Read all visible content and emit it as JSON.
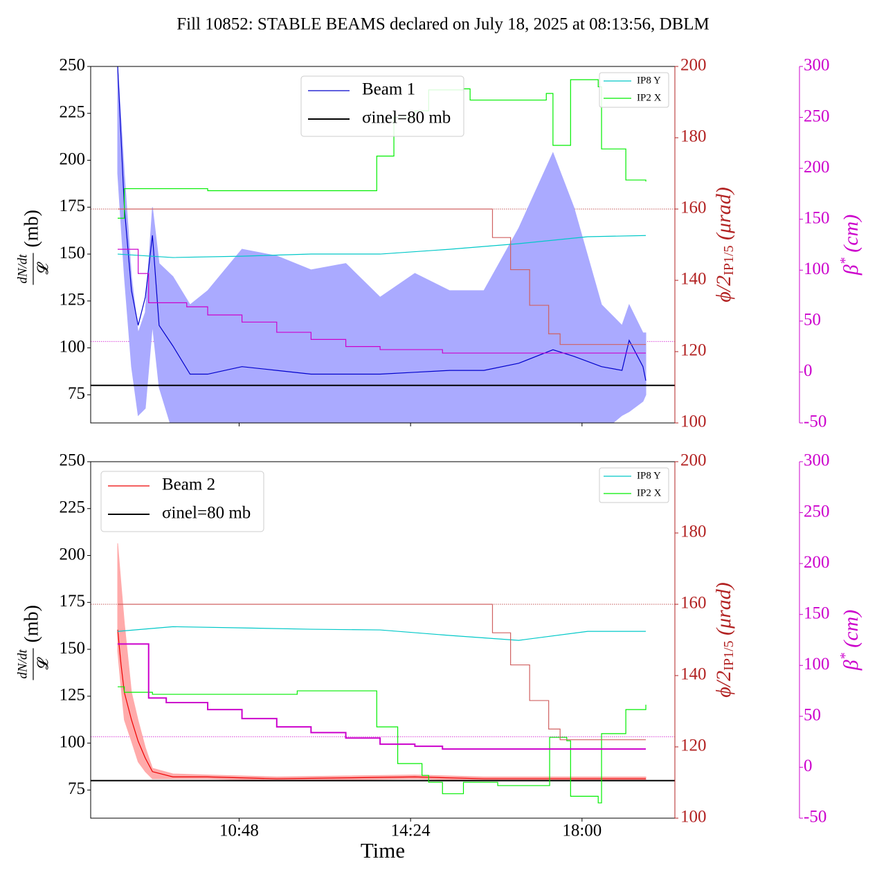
{
  "title": "Fill 10852: STABLE BEAMS declared on July 18, 2025 at 08:13:56, DBLM",
  "chart_data": [
    {
      "type": "line",
      "xlim": [
        7.683,
        19.95
      ],
      "xticks": [
        10.8,
        14.4,
        18.0
      ],
      "ylim": [
        60,
        250
      ],
      "yticks": [
        75,
        100,
        125,
        150,
        175,
        200,
        225,
        250
      ],
      "y2lim": [
        100,
        200
      ],
      "y2ticks": [
        100,
        120,
        140,
        160,
        180,
        200
      ],
      "y3lim": [
        -50,
        300
      ],
      "y3ticks": [
        -50,
        0,
        50,
        100,
        150,
        200,
        250,
        300
      ],
      "ylabel": {
        "numerator": "dN/dt",
        "denominator": "𝓛",
        "unit": "(mb)"
      },
      "y2label": {
        "main": "ϕ/2",
        "sub": "IP1/5",
        "unit": " (μrad)"
      },
      "y3label": {
        "main": "β",
        "sup": "*",
        "unit": " (cm)"
      },
      "legend_loc": "upper center",
      "legend2_loc": "upper right",
      "hlines": [
        {
          "axis": "y2",
          "value": 160,
          "color": "#b22222"
        },
        {
          "axis": "y3",
          "value": 30,
          "color": "#cc00cc"
        }
      ],
      "series": [
        {
          "name": "Beam 1",
          "color": "#0000cc",
          "axis": "y",
          "legend": "main",
          "band_color": "#aaaaff",
          "x": [
            8.25,
            8.39,
            8.54,
            8.68,
            8.83,
            8.98,
            9.12,
            9.41,
            9.77,
            10.14,
            10.86,
            11.59,
            12.31,
            13.04,
            13.76,
            14.49,
            15.22,
            15.94,
            16.67,
            17.39,
            17.83,
            18.41,
            18.84,
            18.99,
            19.28,
            19.34
          ],
          "values": [
            250,
            174.8,
            130.5,
            112,
            127,
            160,
            112,
            101,
            86,
            86,
            90,
            88,
            86,
            86,
            86,
            87,
            88,
            88,
            91.8,
            99,
            95.5,
            90,
            88,
            104,
            90,
            82.5
          ],
          "upper": [
            250,
            193,
            138,
            108,
            119,
            175,
            145,
            138,
            123,
            130.5,
            152.6,
            149,
            141.6,
            145,
            127,
            139.7,
            130.5,
            130.5,
            163.7,
            204,
            174.8,
            123,
            112,
            123,
            108,
            108
          ],
          "lower": [
            193,
            138,
            90,
            64,
            67.8,
            112,
            79,
            55,
            55,
            55,
            55,
            55,
            55,
            55,
            55,
            55,
            55,
            55,
            55,
            55,
            55,
            55,
            64,
            66,
            71.5,
            75
          ]
        },
        {
          "name": "σinel=80 mb",
          "color": "#000000",
          "axis": "y",
          "legend": "main",
          "hline": 80
        },
        {
          "name": "IP8 Y",
          "color": "#00c8c8",
          "axis": "y3",
          "legend": "secondary",
          "x": [
            8.25,
            9.41,
            10.86,
            12.31,
            13.76,
            15.22,
            16.67,
            18.12,
            19.34
          ],
          "values": [
            115.8,
            112.4,
            113.7,
            115.8,
            115.8,
            120.5,
            126,
            132.8,
            134
          ]
        },
        {
          "name": "IP2 X",
          "color": "#00ee00",
          "axis": "y3",
          "legend": "secondary",
          "step": true,
          "x": [
            8.25,
            8.39,
            10.14,
            13.62,
            13.69,
            14.05,
            14.49,
            14.78,
            15.51,
            15.65,
            16.81,
            17.25,
            17.39,
            17.68,
            17.76,
            18.34,
            18.41,
            18.84,
            18.92,
            19.34
          ],
          "values": [
            151,
            180,
            178,
            178,
            212,
            250,
            256.5,
            277,
            278,
            267,
            267,
            273.5,
            222.5,
            222.5,
            287,
            280,
            219,
            219,
            188.5,
            187
          ]
        },
        {
          "color": "#d06060",
          "axis": "y2",
          "step": true,
          "x": [
            8.25,
            16.12,
            16.5,
            16.9,
            17.3,
            17.54,
            19.34
          ],
          "values": [
            160,
            152,
            143,
            133,
            125,
            122,
            122
          ]
        },
        {
          "color": "#cc00cc",
          "axis": "y3",
          "step": true,
          "x": [
            8.25,
            8.68,
            8.9,
            9.7,
            10.14,
            10.86,
            11.59,
            12.31,
            13.04,
            13.76,
            15.07,
            19.34
          ],
          "values": [
            120.5,
            96.7,
            68,
            64,
            56,
            49,
            39,
            32,
            25,
            22,
            18.6,
            18.6
          ]
        }
      ]
    },
    {
      "type": "line",
      "xlim": [
        7.683,
        19.95
      ],
      "xticks": [
        {
          "value": 10.8,
          "label": "10:48"
        },
        {
          "value": 14.4,
          "label": "14:24"
        },
        {
          "value": 18.0,
          "label": "18:00"
        }
      ],
      "xlabel": "Time",
      "ylim": [
        60,
        250
      ],
      "yticks": [
        75,
        100,
        125,
        150,
        175,
        200,
        225,
        250
      ],
      "y2lim": [
        100,
        200
      ],
      "y2ticks": [
        100,
        120,
        140,
        160,
        180,
        200
      ],
      "y3lim": [
        -50,
        300
      ],
      "y3ticks": [
        -50,
        0,
        50,
        100,
        150,
        200,
        250,
        300
      ],
      "ylabel": {
        "numerator": "dN/dt",
        "denominator": "𝓛",
        "unit": "(mb)"
      },
      "y2label": {
        "main": "ϕ/2",
        "sub": "IP1/5",
        "unit": " (μrad)"
      },
      "y3label": {
        "main": "β",
        "sup": "*",
        "unit": " (cm)"
      },
      "legend_loc": "upper left",
      "legend2_loc": "upper right",
      "hlines": [
        {
          "axis": "y2",
          "value": 160,
          "color": "#b22222"
        },
        {
          "axis": "y3",
          "value": 30,
          "color": "#cc00cc"
        }
      ],
      "series": [
        {
          "name": "Beam 2",
          "color": "#ee0000",
          "axis": "y",
          "legend": "main",
          "band_color": "#ffaaaa",
          "x": [
            8.25,
            8.32,
            8.39,
            8.54,
            8.68,
            8.83,
            8.98,
            9.41,
            10.14,
            11.59,
            14.49,
            15.94,
            19.34
          ],
          "values": [
            160.4,
            142,
            127,
            112.4,
            101,
            92,
            84.8,
            82,
            82,
            81,
            82,
            81,
            81
          ],
          "upper": [
            206.5,
            185,
            164,
            127,
            112,
            97.7,
            86.6,
            83.6,
            83,
            82,
            83,
            82,
            82
          ],
          "lower": [
            149,
            130,
            112.4,
            101,
            90,
            84.8,
            81,
            81,
            81,
            80,
            81,
            80,
            80
          ]
        },
        {
          "name": "σinel=80 mb",
          "color": "#000000",
          "axis": "y",
          "legend": "main",
          "hline": 80
        },
        {
          "name": "IP8 Y",
          "color": "#00c8c8",
          "axis": "y3",
          "legend": "secondary",
          "x": [
            8.25,
            9.41,
            10.86,
            12.31,
            13.76,
            15.22,
            16.67,
            18.12,
            19.34
          ],
          "values": [
            133.4,
            138,
            136.8,
            135.5,
            134.8,
            129.4,
            124.6,
            133.4,
            133.4
          ]
        },
        {
          "name": "IP2 X",
          "color": "#00ee00",
          "axis": "y3",
          "legend": "secondary",
          "step": true,
          "x": [
            8.25,
            8.39,
            8.98,
            12.02,
            13.69,
            14.13,
            14.64,
            14.78,
            15.07,
            15.51,
            16.23,
            17.32,
            17.68,
            17.76,
            18.34,
            18.41,
            18.92,
            19.34
          ],
          "values": [
            79,
            73.6,
            71.6,
            75,
            39.6,
            3.6,
            -8,
            -14.8,
            -26,
            -14.8,
            -18,
            29.4,
            26,
            -28.5,
            -35,
            33,
            56.6,
            61.4
          ]
        },
        {
          "color": "#d06060",
          "axis": "y2",
          "step": true,
          "x": [
            8.25,
            16.12,
            16.5,
            16.9,
            17.3,
            17.54,
            19.34
          ],
          "values": [
            160,
            152,
            143,
            133,
            125,
            122,
            122
          ]
        },
        {
          "color": "#cc00cc",
          "axis": "y3",
          "step": true,
          "width": 2,
          "x": [
            8.25,
            8.9,
            9.27,
            10.14,
            10.86,
            11.59,
            12.31,
            13.04,
            13.76,
            14.49,
            15.07,
            19.34
          ],
          "values": [
            121,
            68,
            63.5,
            56.6,
            47.8,
            39.6,
            34,
            28.7,
            22.6,
            20.6,
            17.9,
            17.9
          ]
        }
      ]
    }
  ]
}
